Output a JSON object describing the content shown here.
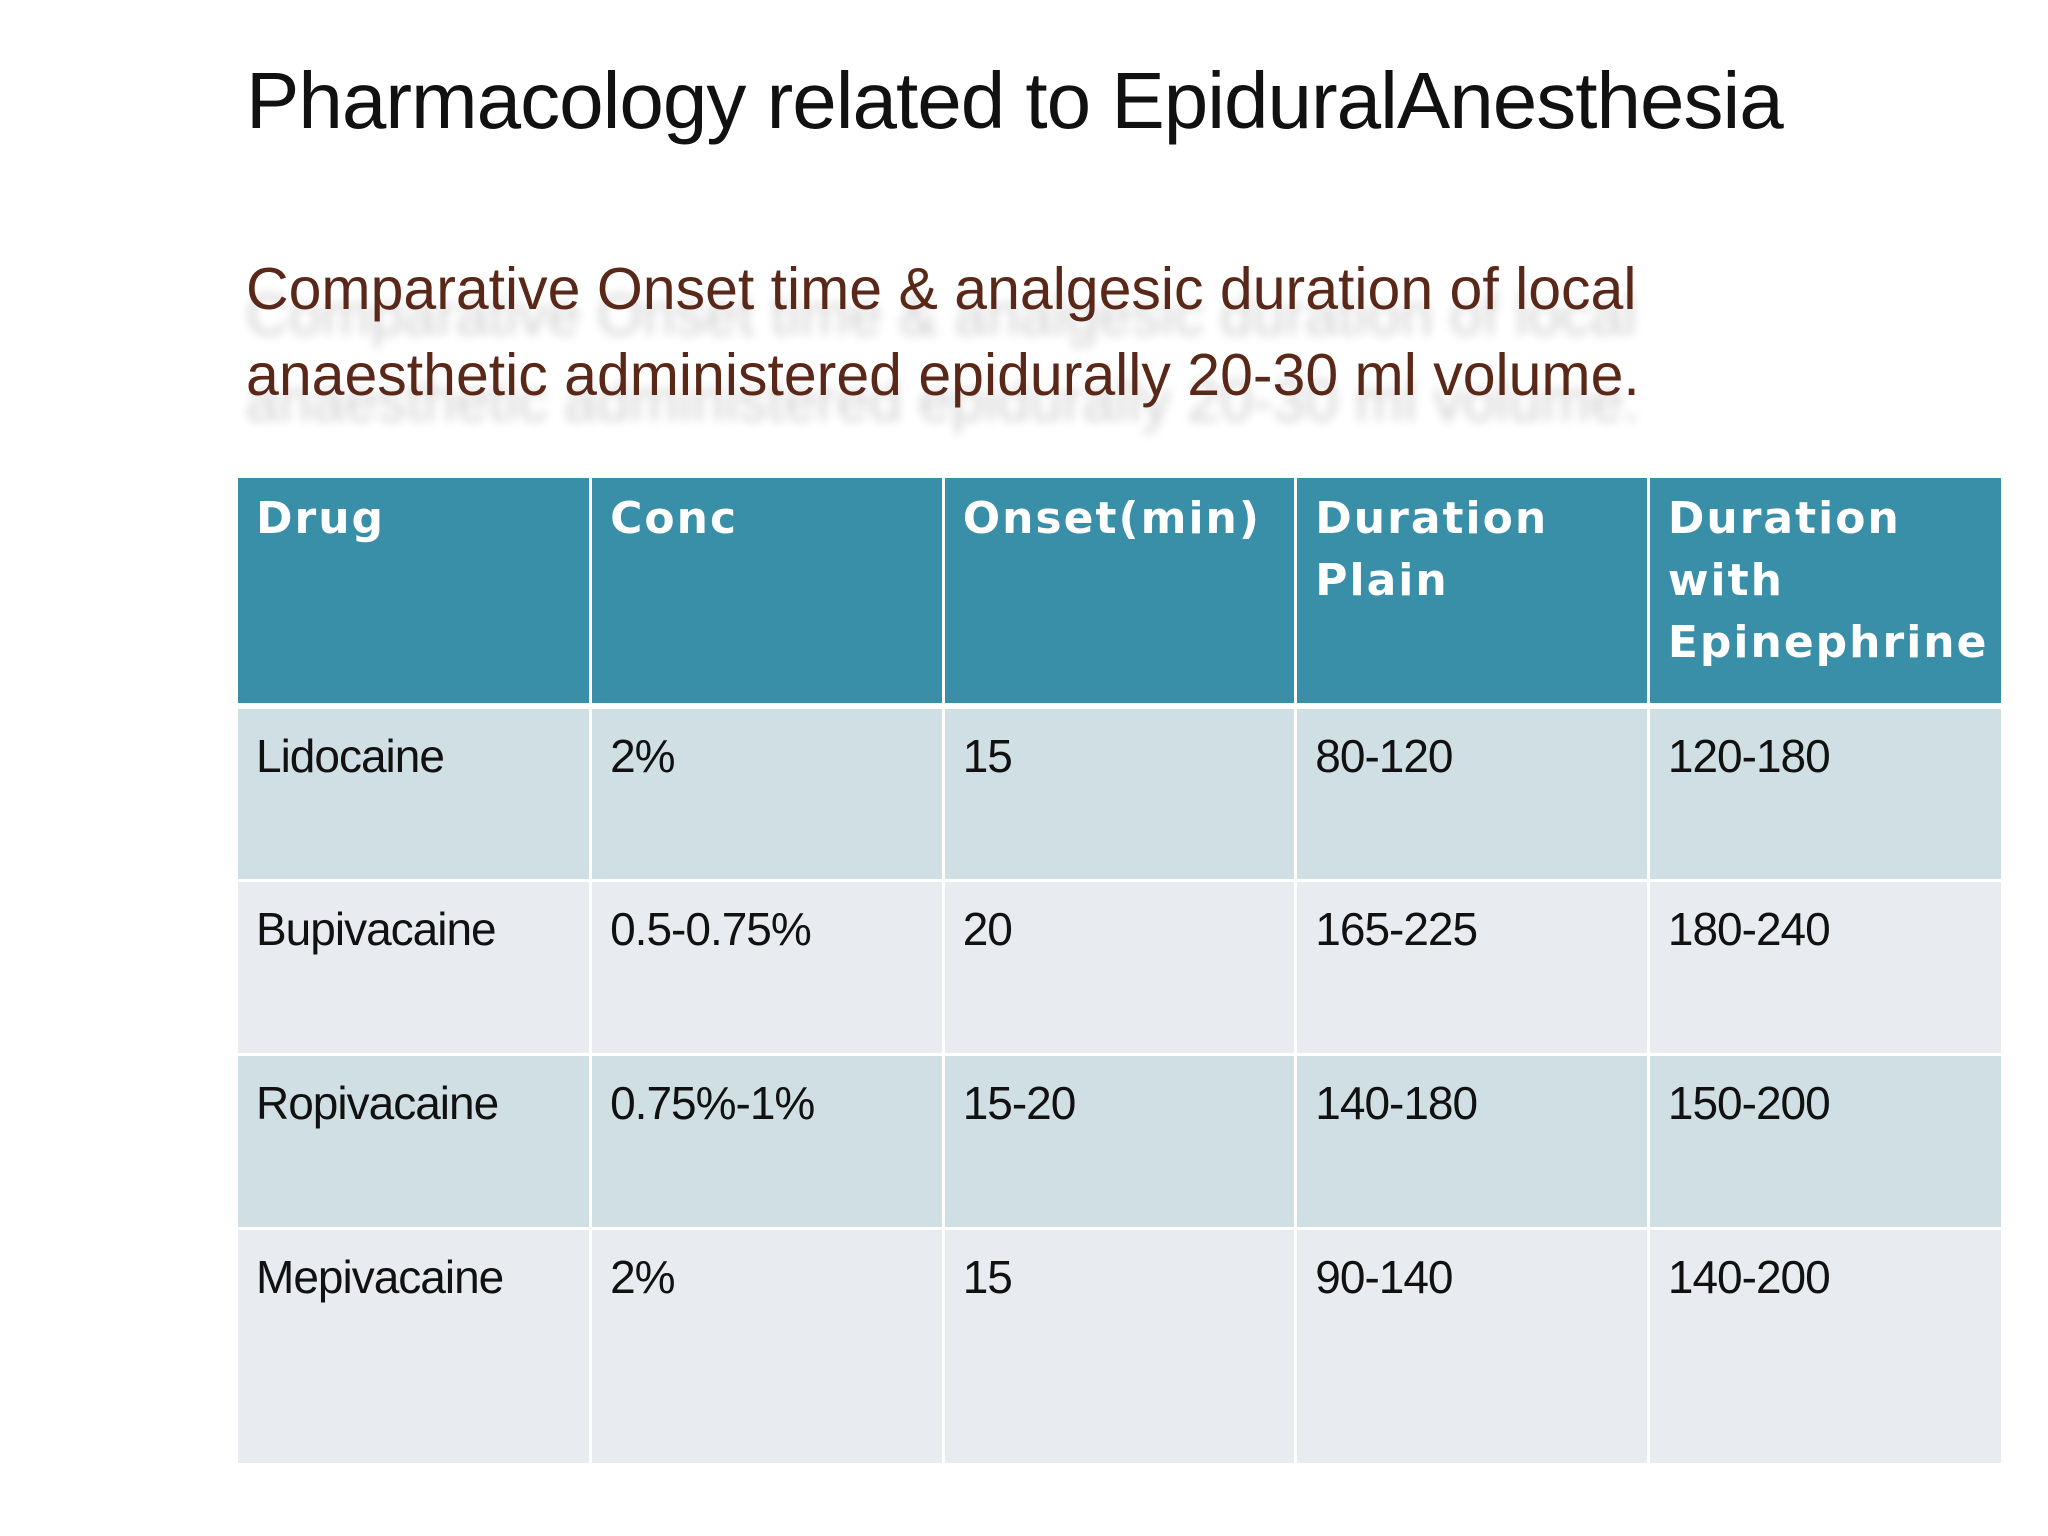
{
  "slide": {
    "title": "Pharmacology related to EpiduralAnesthesia",
    "subtitle_line1": "Comparative Onset time & analgesic duration of local",
    "subtitle_line2": "anaesthetic administered epidurally 20-30 ml volume."
  },
  "table": {
    "headers": [
      "Drug",
      "Conc",
      "Onset(min)",
      "Duration Plain",
      "Duration with Epinephrine"
    ],
    "rows": [
      [
        "Lidocaine",
        "2%",
        "15",
        "80-120",
        "120-180"
      ],
      [
        "Bupivacaine",
        "0.5-0.75%",
        "20",
        "165-225",
        "180-240"
      ],
      [
        "Ropivacaine",
        "0.75%-1%",
        "15-20",
        "140-180",
        "150-200"
      ],
      [
        "Mepivacaine",
        "2%",
        "15",
        "90-140",
        "140-200"
      ]
    ]
  },
  "colors": {
    "header_bg": "#3a8fa8",
    "row_odd_bg": "#cfdfe3",
    "row_even_bg": "#e8ecf0",
    "subtitle_color": "#5a2818"
  }
}
